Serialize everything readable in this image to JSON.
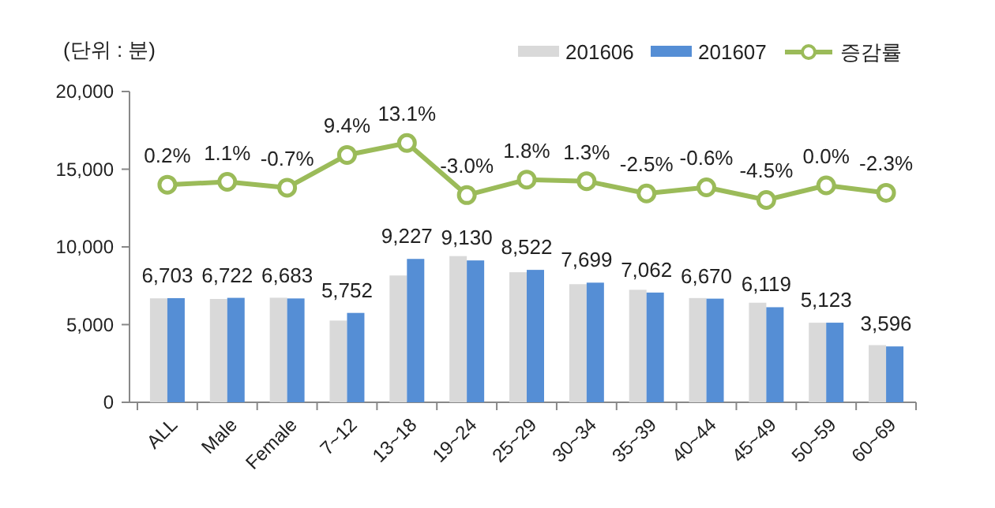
{
  "chart_data": {
    "type": "bar",
    "ylabel": "(단위 : 분)",
    "categories": [
      "ALL",
      "Male",
      "Female",
      "7~12",
      "13~18",
      "19~24",
      "25~29",
      "30~34",
      "35~39",
      "40~44",
      "45~49",
      "50~59",
      "60~69"
    ],
    "series": [
      {
        "name": "201606",
        "color": "#d9d9d9",
        "values": [
          6690,
          6650,
          6730,
          5260,
          8160,
          9410,
          8370,
          7600,
          7240,
          6710,
          6410,
          5120,
          3680
        ]
      },
      {
        "name": "201607",
        "color": "#558ed5",
        "values": [
          6703,
          6722,
          6683,
          5752,
          9227,
          9130,
          8522,
          7699,
          7062,
          6670,
          6119,
          5123,
          3596
        ],
        "value_labels": [
          "6,703",
          "6,722",
          "6,683",
          "5,752",
          "9,227",
          "9,130",
          "8,522",
          "7,699",
          "7,062",
          "6,670",
          "6,119",
          "5,123",
          "3,596"
        ]
      },
      {
        "name": "증감률",
        "type": "line",
        "axis": "y2",
        "color": "#9bbb59",
        "marker": "circle",
        "values": [
          0.2,
          1.1,
          -0.7,
          9.4,
          13.1,
          -3.0,
          1.8,
          1.3,
          -2.5,
          -0.6,
          -4.5,
          0.0,
          -2.3
        ],
        "value_labels": [
          "0.2%",
          "1.1%",
          "-0.7%",
          "9.4%",
          "13.1%",
          "-3.0%",
          "1.8%",
          "1.3%",
          "-2.5%",
          "-0.6%",
          "-4.5%",
          "0.0%",
          "-2.3%"
        ]
      }
    ],
    "ylim": [
      0,
      20000
    ],
    "yticks": [
      {
        "value": 0,
        "label": "0"
      },
      {
        "value": 5000,
        "label": "5,000"
      },
      {
        "value": 10000,
        "label": "10,000"
      },
      {
        "value": 15000,
        "label": "15,000"
      },
      {
        "value": 20000,
        "label": "20,000"
      }
    ],
    "y2lim": [
      -67,
      29
    ],
    "legend": "top right"
  }
}
